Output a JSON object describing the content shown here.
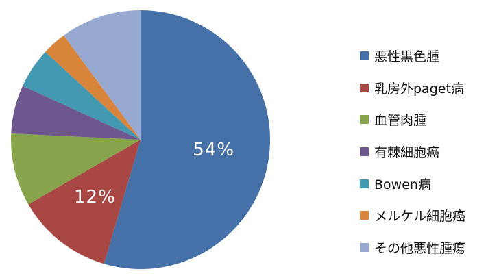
{
  "chart_data": {
    "type": "pie",
    "categories": [
      "悪性黒色腫",
      "乳房外paget病",
      "血管肉腫",
      "有棘細胞癌",
      "Bowen病",
      "メルケル細胞癌",
      "その他悪性腫瘍"
    ],
    "values": [
      54,
      12,
      9,
      6,
      5,
      3,
      10
    ],
    "data_labels": [
      "54%",
      "12%",
      "",
      "",
      "",
      "",
      ""
    ],
    "colors": [
      "#4571a8",
      "#a94744",
      "#88a44c",
      "#6e568f",
      "#4499b2",
      "#d9843b",
      "#97a9d0"
    ],
    "legend_position": "right",
    "start_angle": "12 o'clock",
    "direction": "clockwise"
  }
}
